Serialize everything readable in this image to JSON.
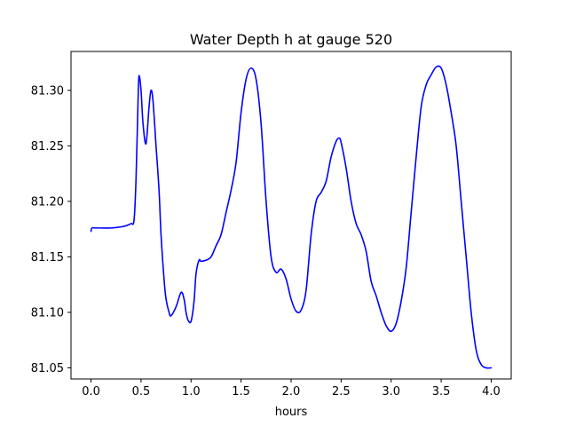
{
  "chart_data": {
    "type": "line",
    "title": "Water Depth h at gauge 520",
    "xlabel": "hours",
    "ylabel": "",
    "xlim": [
      -0.2,
      4.2
    ],
    "ylim": [
      81.04,
      81.335
    ],
    "grid": false,
    "x_ticks": [
      0.0,
      0.5,
      1.0,
      1.5,
      2.0,
      2.5,
      3.0,
      3.5,
      4.0
    ],
    "x_tick_labels": [
      "0.0",
      "0.5",
      "1.0",
      "1.5",
      "2.0",
      "2.5",
      "3.0",
      "3.5",
      "4.0"
    ],
    "y_ticks": [
      81.05,
      81.1,
      81.15,
      81.2,
      81.25,
      81.3
    ],
    "y_tick_labels": [
      "81.05",
      "81.10",
      "81.15",
      "81.20",
      "81.25",
      "81.30"
    ],
    "line_color": "#0000ff",
    "series": [
      {
        "x": [
          0.0,
          0.01,
          0.05,
          0.1,
          0.2,
          0.3,
          0.35,
          0.4,
          0.43,
          0.45,
          0.47,
          0.48,
          0.5,
          0.52,
          0.55,
          0.58,
          0.6,
          0.62,
          0.65,
          0.68,
          0.7,
          0.73,
          0.75,
          0.78,
          0.8,
          0.85,
          0.9,
          0.93,
          0.95,
          0.97,
          1.0,
          1.03,
          1.05,
          1.08,
          1.1,
          1.15,
          1.2,
          1.25,
          1.3,
          1.35,
          1.4,
          1.45,
          1.5,
          1.55,
          1.6,
          1.65,
          1.7,
          1.75,
          1.8,
          1.85,
          1.9,
          1.95,
          2.0,
          2.05,
          2.1,
          2.15,
          2.2,
          2.25,
          2.3,
          2.35,
          2.4,
          2.45,
          2.48,
          2.5,
          2.55,
          2.6,
          2.65,
          2.7,
          2.75,
          2.8,
          2.85,
          2.9,
          2.95,
          3.0,
          3.05,
          3.1,
          3.15,
          3.2,
          3.25,
          3.3,
          3.35,
          3.4,
          3.45,
          3.5,
          3.55,
          3.6,
          3.65,
          3.7,
          3.75,
          3.8,
          3.85,
          3.9,
          3.95,
          4.0
        ],
        "values": [
          81.173,
          81.176,
          81.176,
          81.176,
          81.176,
          81.177,
          81.178,
          81.18,
          81.183,
          81.22,
          81.29,
          81.313,
          81.3,
          81.27,
          81.252,
          81.285,
          81.3,
          81.29,
          81.25,
          81.21,
          81.17,
          81.13,
          81.112,
          81.1,
          81.097,
          81.105,
          81.118,
          81.112,
          81.1,
          81.093,
          81.092,
          81.11,
          81.135,
          81.147,
          81.146,
          81.147,
          81.15,
          81.16,
          81.17,
          81.19,
          81.21,
          81.235,
          81.28,
          81.31,
          81.32,
          81.31,
          81.27,
          81.2,
          81.15,
          81.136,
          81.139,
          81.13,
          81.112,
          81.101,
          81.102,
          81.12,
          81.17,
          81.2,
          81.208,
          81.218,
          81.24,
          81.254,
          81.257,
          81.253,
          81.23,
          81.2,
          81.18,
          81.17,
          81.155,
          81.128,
          81.115,
          81.1,
          81.088,
          81.083,
          81.09,
          81.11,
          81.14,
          81.19,
          81.24,
          81.285,
          81.305,
          81.314,
          81.321,
          81.32,
          81.305,
          81.28,
          81.25,
          81.2,
          81.15,
          81.1,
          81.066,
          81.053,
          81.05,
          81.05
        ]
      }
    ]
  }
}
